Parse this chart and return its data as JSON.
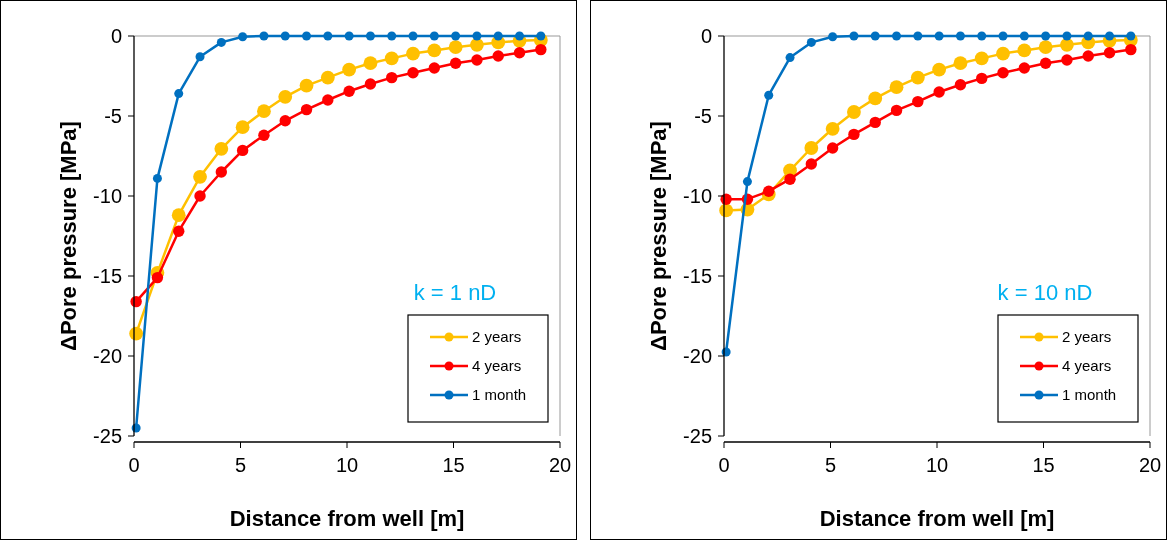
{
  "chart_data": [
    {
      "type": "line",
      "xlabel": "Distance from well [m]",
      "ylabel": "ΔPore pressure [MPa]",
      "annotations": [
        "k = 1 nD"
      ],
      "xlim": [
        0,
        20
      ],
      "xticks": [
        0,
        5,
        10,
        15,
        20
      ],
      "ylim": [
        -25,
        0
      ],
      "yticks": [
        0,
        -5,
        -10,
        -15,
        -20,
        -25
      ],
      "legend": "bottom right",
      "marker": "circle",
      "grid": false,
      "x": [
        0.1,
        1.1,
        2.1,
        3.1,
        4.1,
        5.1,
        6.1,
        7.1,
        8.1,
        9.1,
        10.1,
        11.1,
        12.1,
        13.1,
        14.1,
        15.1,
        16.1,
        17.1,
        18.1,
        19.1
      ],
      "series": [
        {
          "name": "2 years",
          "color": "#ffc000",
          "values": [
            -18.6,
            -14.8,
            -11.2,
            -8.8,
            -7.05,
            -5.7,
            -4.7,
            -3.8,
            -3.1,
            -2.6,
            -2.1,
            -1.7,
            -1.4,
            -1.1,
            -0.9,
            -0.7,
            -0.55,
            -0.4,
            -0.3,
            -0.25
          ]
        },
        {
          "name": "4 years",
          "color": "#ff0000",
          "values": [
            -16.6,
            -15.1,
            -12.2,
            -10.0,
            -8.5,
            -7.15,
            -6.2,
            -5.3,
            -4.6,
            -4.0,
            -3.45,
            -3.0,
            -2.6,
            -2.3,
            -2.0,
            -1.7,
            -1.5,
            -1.25,
            -1.05,
            -0.85
          ]
        },
        {
          "name": "1 month",
          "color": "#0070c0",
          "values": [
            -24.5,
            -8.9,
            -3.6,
            -1.3,
            -0.4,
            -0.05,
            0,
            0,
            0,
            0,
            0,
            0,
            0,
            0,
            0,
            0,
            0,
            0,
            0,
            0
          ]
        }
      ]
    },
    {
      "type": "line",
      "xlabel": "Distance from well [m]",
      "ylabel": "ΔPore pressure [MPa]",
      "annotations": [
        "k = 10 nD"
      ],
      "xlim": [
        0,
        20
      ],
      "xticks": [
        0,
        5,
        10,
        15,
        20
      ],
      "ylim": [
        -25,
        0
      ],
      "yticks": [
        0,
        -5,
        -10,
        -15,
        -20,
        -25
      ],
      "legend": "bottom right",
      "marker": "circle",
      "grid": false,
      "x": [
        0.1,
        1.1,
        2.1,
        3.1,
        4.1,
        5.1,
        6.1,
        7.1,
        8.1,
        9.1,
        10.1,
        11.1,
        12.1,
        13.1,
        14.1,
        15.1,
        16.1,
        17.1,
        18.1,
        19.1
      ],
      "series": [
        {
          "name": "2 years",
          "color": "#ffc000",
          "values": [
            -10.9,
            -10.85,
            -9.9,
            -8.4,
            -7.0,
            -5.8,
            -4.75,
            -3.9,
            -3.2,
            -2.6,
            -2.1,
            -1.7,
            -1.4,
            -1.1,
            -0.9,
            -0.7,
            -0.55,
            -0.4,
            -0.3,
            -0.25
          ]
        },
        {
          "name": "4 years",
          "color": "#ff0000",
          "values": [
            -10.2,
            -10.2,
            -9.7,
            -8.95,
            -8.0,
            -7.0,
            -6.15,
            -5.4,
            -4.65,
            -4.1,
            -3.5,
            -3.05,
            -2.65,
            -2.3,
            -2.0,
            -1.7,
            -1.5,
            -1.25,
            -1.05,
            -0.85
          ]
        },
        {
          "name": "1 month",
          "color": "#0070c0",
          "values": [
            -19.75,
            -9.1,
            -3.7,
            -1.35,
            -0.4,
            -0.05,
            0,
            0,
            0,
            0,
            0,
            0,
            0,
            0,
            0,
            0,
            0,
            0,
            0,
            0
          ]
        }
      ]
    }
  ]
}
